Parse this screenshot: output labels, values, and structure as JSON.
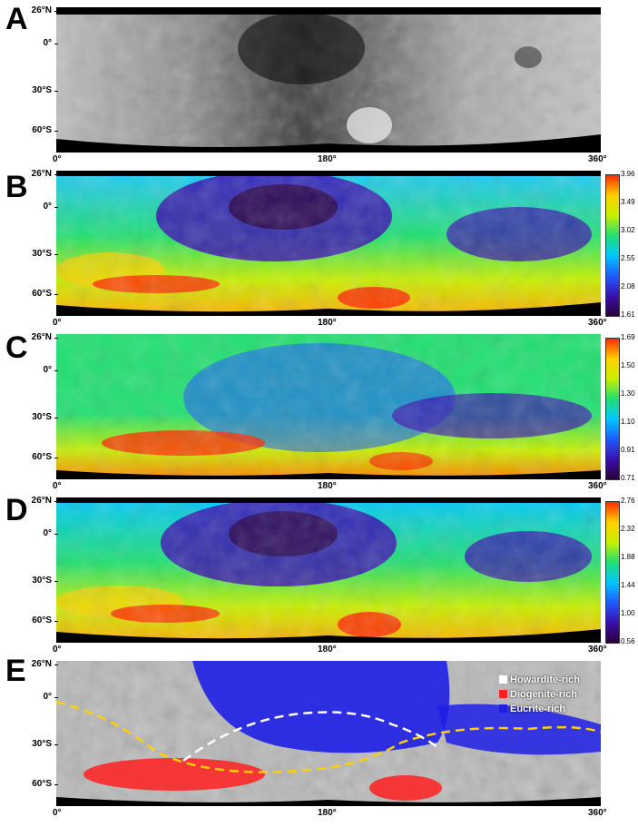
{
  "panels": [
    {
      "letter": "A",
      "colorbar": null
    },
    {
      "letter": "B",
      "colorbar": {
        "ticks": [
          "3.96",
          "3.49",
          "3.02",
          "2.55",
          "2.08",
          "1.61"
        ]
      }
    },
    {
      "letter": "C",
      "colorbar": {
        "ticks": [
          "1.69",
          "1.50",
          "1.30",
          "1.10",
          "0.91",
          "0.71"
        ]
      }
    },
    {
      "letter": "D",
      "colorbar": {
        "ticks": [
          "2.76",
          "2.32",
          "1.88",
          "1.44",
          "1.00",
          "0.56"
        ]
      }
    },
    {
      "letter": "E",
      "colorbar": null
    }
  ],
  "lat_labels": [
    "26°N",
    "0°",
    "30°S",
    "60°S"
  ],
  "lon_labels": [
    "0°",
    "180°",
    "360°"
  ],
  "legend": [
    {
      "label": "Howardite-rich",
      "color": "#ffffff"
    },
    {
      "label": "Diogenite-rich",
      "color": "#ff2020"
    },
    {
      "label": "Eucrite-rich",
      "color": "#1e1ee6"
    }
  ],
  "colors": {
    "colormap": [
      "#2a003a",
      "#3a10b0",
      "#1e5cff",
      "#00c8ff",
      "#20e070",
      "#c8f000",
      "#ffd000",
      "#ff2a00"
    ]
  }
}
